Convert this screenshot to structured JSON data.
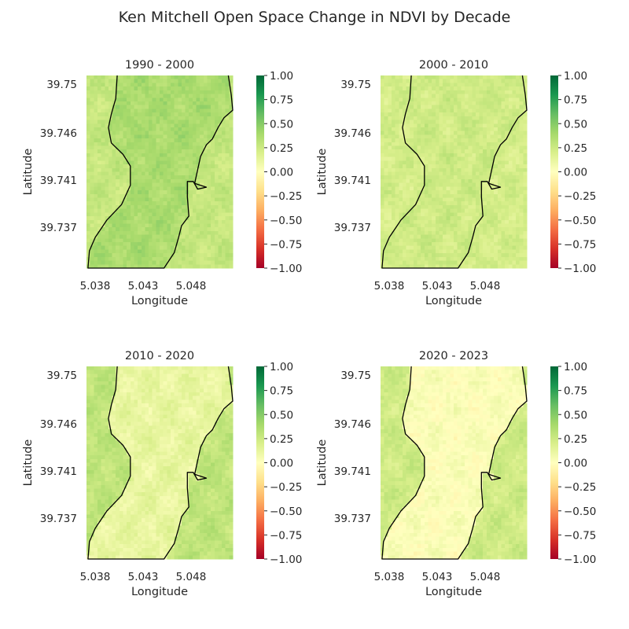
{
  "figure": {
    "title": "Ken Mitchell Open Space Change in NDVI by Decade"
  },
  "colors": {
    "text": "#262626",
    "outline": "#000000",
    "cmap_stops": [
      "#a50026",
      "#d73027",
      "#f46d43",
      "#fdae61",
      "#fee08b",
      "#ffffbf",
      "#d9ef8b",
      "#a6d96a",
      "#66bd63",
      "#1a9850",
      "#006837"
    ]
  },
  "chart_data": [
    {
      "type": "heatmap",
      "title": "1990 - 2000",
      "xlabel": "Longitude",
      "ylabel": "Latitude",
      "xticks": [
        "5.038",
        "5.043",
        "5.048"
      ],
      "yticks": [
        "39.75",
        "39.746",
        "39.741",
        "39.737"
      ],
      "colorbar": {
        "vmin": -1.0,
        "vmax": 1.0,
        "ticks": [
          "1.00",
          "0.75",
          "0.50",
          "0.25",
          "0.00",
          "−0.25",
          "−0.50",
          "−0.75",
          "−1.00"
        ]
      },
      "inside_mean": 0.38,
      "outside_mean": 0.28,
      "colormap": "RdYlGn"
    },
    {
      "type": "heatmap",
      "title": "2000 - 2010",
      "xlabel": "Longitude",
      "ylabel": "Latitude",
      "xticks": [
        "5.038",
        "5.043",
        "5.048"
      ],
      "yticks": [
        "39.75",
        "39.746",
        "39.741",
        "39.737"
      ],
      "colorbar": {
        "vmin": -1.0,
        "vmax": 1.0,
        "ticks": [
          "1.00",
          "0.75",
          "0.50",
          "0.25",
          "0.00",
          "−0.25",
          "−0.50",
          "−0.75",
          "−1.00"
        ]
      },
      "inside_mean": 0.24,
      "outside_mean": 0.22,
      "colormap": "RdYlGn"
    },
    {
      "type": "heatmap",
      "title": "2010 - 2020",
      "xlabel": "Longitude",
      "ylabel": "Latitude",
      "xticks": [
        "5.038",
        "5.043",
        "5.048"
      ],
      "yticks": [
        "39.75",
        "39.746",
        "39.741",
        "39.737"
      ],
      "colorbar": {
        "vmin": -1.0,
        "vmax": 1.0,
        "ticks": [
          "1.00",
          "0.75",
          "0.50",
          "0.25",
          "0.00",
          "−0.25",
          "−0.50",
          "−0.75",
          "−1.00"
        ]
      },
      "inside_mean": 0.12,
      "outside_mean": 0.3,
      "colormap": "RdYlGn"
    },
    {
      "type": "heatmap",
      "title": "2020 - 2023",
      "xlabel": "Longitude",
      "ylabel": "Latitude",
      "xticks": [
        "5.038",
        "5.043",
        "5.048"
      ],
      "yticks": [
        "39.75",
        "39.746",
        "39.741",
        "39.737"
      ],
      "colorbar": {
        "vmin": -1.0,
        "vmax": 1.0,
        "ticks": [
          "1.00",
          "0.75",
          "0.50",
          "0.25",
          "0.00",
          "−0.25",
          "−0.50",
          "−0.75",
          "−1.00"
        ]
      },
      "inside_mean": 0.02,
      "outside_mean": 0.24,
      "colormap": "RdYlGn"
    }
  ]
}
